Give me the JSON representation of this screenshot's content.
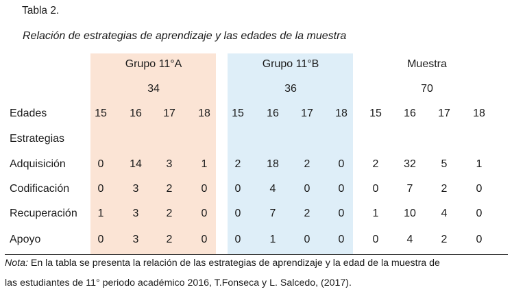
{
  "table": {
    "label": "Tabla 2.",
    "title": "Relación  de estrategias de aprendizaje y las edades de la muestra",
    "groups": [
      {
        "name": "Grupo 11°A",
        "n": "34"
      },
      {
        "name": "Grupo 11°B",
        "n": "36"
      },
      {
        "name": "Muestra",
        "n": "70"
      }
    ],
    "age_header_label": "Edades",
    "ages": [
      "15",
      "16",
      "17",
      "18"
    ],
    "strategies_label": "Estrategias",
    "rows": [
      {
        "label": "Adquisición",
        "values": [
          "0",
          "14",
          "3",
          "1",
          "2",
          "18",
          "2",
          "0",
          "2",
          "32",
          "5",
          "1"
        ]
      },
      {
        "label": "Codificación",
        "values": [
          "0",
          "3",
          "2",
          "0",
          "0",
          "4",
          "0",
          "0",
          "0",
          "7",
          "2",
          "0"
        ]
      },
      {
        "label": "Recuperación",
        "values": [
          "1",
          "3",
          "2",
          "0",
          "0",
          "7",
          "2",
          "0",
          "1",
          "10",
          "4",
          "0"
        ]
      },
      {
        "label": "Apoyo",
        "values": [
          "0",
          "3",
          "2",
          "0",
          "0",
          "1",
          "0",
          "0",
          "0",
          "4",
          "2",
          "0"
        ]
      }
    ],
    "colors": {
      "group_a_band": "#fbe4d5",
      "group_b_band": "#deeef8"
    }
  },
  "note": {
    "prefix": "Nota:",
    "line1": " En la tabla se presenta la relación de las estrategias de aprendizaje y la edad de la muestra de",
    "line2": "las estudiantes de 11° periodo académico 2016, T.Fonseca y L. Salcedo, (2017)."
  }
}
